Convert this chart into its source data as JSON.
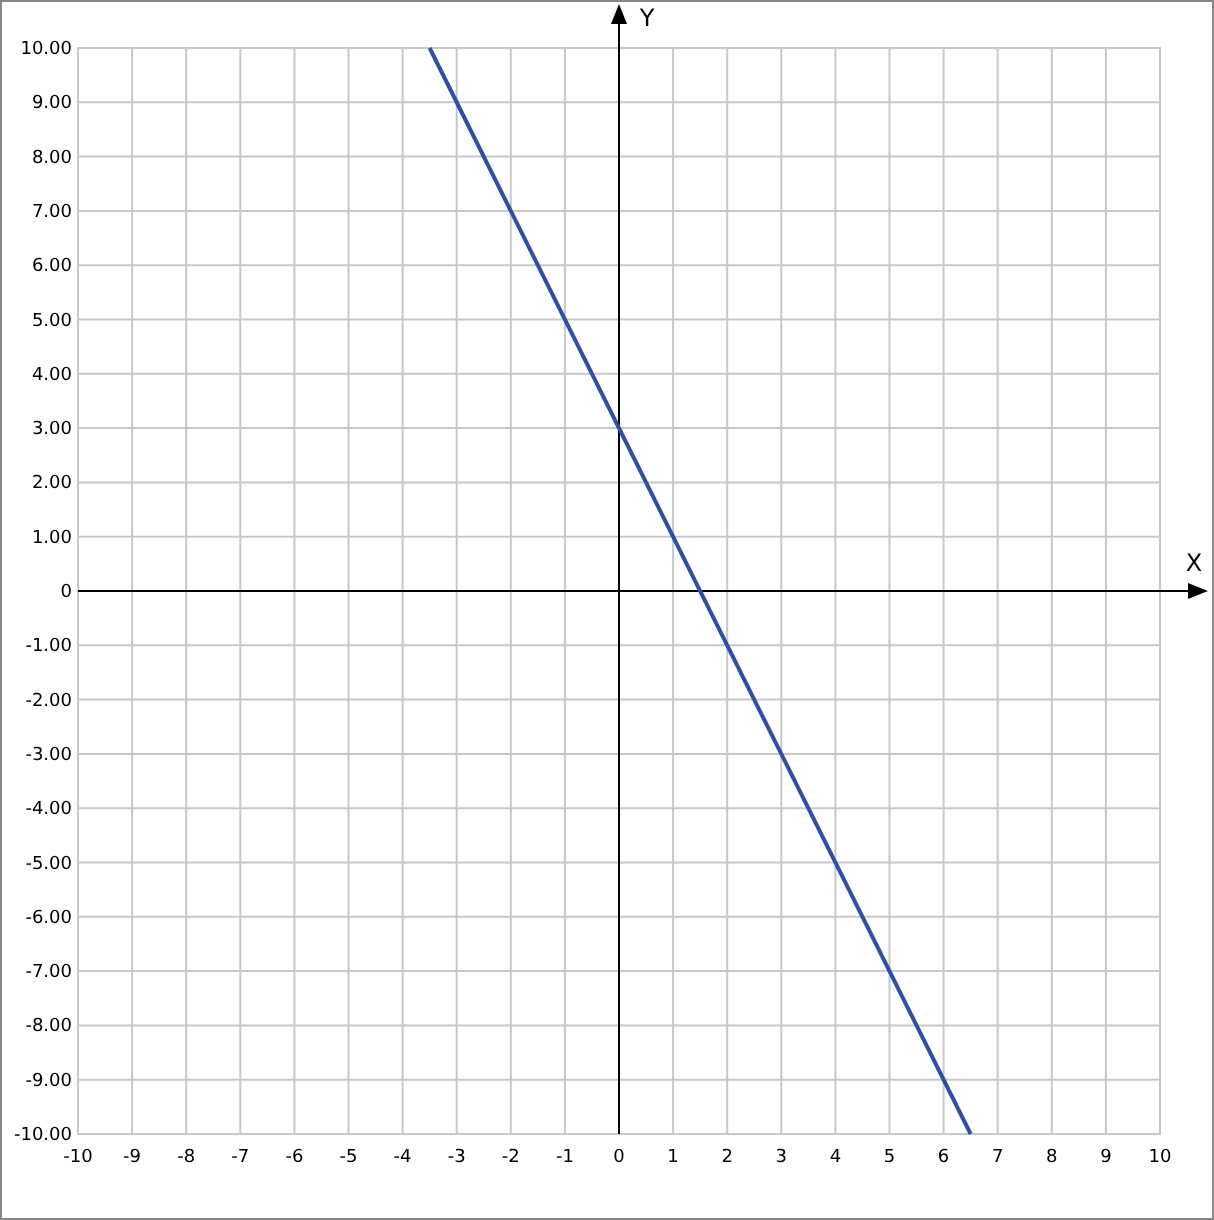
{
  "chart_data": {
    "type": "line",
    "xlabel": "X",
    "ylabel": "Y",
    "xlim": [
      -10,
      10
    ],
    "ylim": [
      -10,
      10
    ],
    "xticks": [
      -10,
      -9,
      -8,
      -7,
      -6,
      -5,
      -4,
      -3,
      -2,
      -1,
      0,
      1,
      2,
      3,
      4,
      5,
      6,
      7,
      8,
      9,
      10
    ],
    "yticks": [
      {
        "value": 10,
        "label": "10.00"
      },
      {
        "value": 9,
        "label": "9.00"
      },
      {
        "value": 8,
        "label": "8.00"
      },
      {
        "value": 7,
        "label": "7.00"
      },
      {
        "value": 6,
        "label": "6.00"
      },
      {
        "value": 5,
        "label": "5.00"
      },
      {
        "value": 4,
        "label": "4.00"
      },
      {
        "value": 3,
        "label": "3.00"
      },
      {
        "value": 2,
        "label": "2.00"
      },
      {
        "value": 1,
        "label": "1.00"
      },
      {
        "value": 0,
        "label": "0"
      },
      {
        "value": -1,
        "label": "-1.00"
      },
      {
        "value": -2,
        "label": "-2.00"
      },
      {
        "value": -3,
        "label": "-3.00"
      },
      {
        "value": -4,
        "label": "-4.00"
      },
      {
        "value": -5,
        "label": "-5.00"
      },
      {
        "value": -6,
        "label": "-6.00"
      },
      {
        "value": -7,
        "label": "-7.00"
      },
      {
        "value": -8,
        "label": "-8.00"
      },
      {
        "value": -9,
        "label": "-9.00"
      },
      {
        "value": -10,
        "label": "-10.00"
      }
    ],
    "grid": true,
    "series": [
      {
        "color": "#2b50a6",
        "x": [
          -3.5,
          6.5
        ],
        "values": [
          10,
          -10
        ]
      }
    ]
  }
}
